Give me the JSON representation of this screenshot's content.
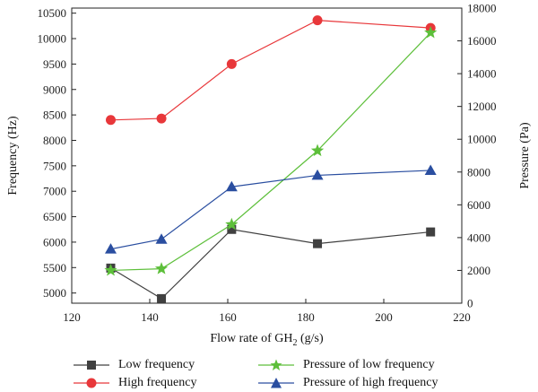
{
  "chart_data": {
    "type": "line",
    "xlabel_main": "Flow rate of GH",
    "xlabel_sub": "2",
    "xlabel_tail": " (g/s)",
    "ylabel_left": "Frequency (Hz)",
    "ylabel_right": "Pressure (Pa)",
    "xlim": [
      120,
      220
    ],
    "ylim_left": [
      4800,
      10600
    ],
    "ylim_right": [
      0,
      18000
    ],
    "x_ticks": [
      "120",
      "140",
      "160",
      "180",
      "200",
      "220"
    ],
    "y_left_ticks": [
      "5000",
      "5500",
      "6000",
      "6500",
      "7000",
      "7500",
      "8000",
      "8500",
      "9000",
      "9500",
      "10000",
      "10500"
    ],
    "y_right_ticks": [
      "0",
      "2000",
      "4000",
      "6000",
      "8000",
      "10000",
      "12000",
      "14000",
      "16000",
      "18000"
    ],
    "x": [
      130,
      143,
      161,
      183,
      212
    ],
    "series": [
      {
        "name": "Low frequency",
        "axis": "left",
        "color": "#404040",
        "marker": "square",
        "values": [
          5490,
          4890,
          6250,
          5970,
          6200
        ]
      },
      {
        "name": "High frequency",
        "axis": "left",
        "color": "#e8373a",
        "marker": "circle",
        "values": [
          8400,
          8430,
          9500,
          10360,
          10210
        ]
      },
      {
        "name": "Pressure of low frequency",
        "axis": "right",
        "color": "#5dbf3a",
        "marker": "star",
        "values": [
          2000,
          2100,
          4800,
          9300,
          16500
        ]
      },
      {
        "name": "Pressure of high frequency",
        "axis": "right",
        "color": "#2a4ea0",
        "marker": "triangle",
        "values": [
          3300,
          3900,
          7100,
          7800,
          8100
        ]
      }
    ],
    "legend_placement": "bottom"
  }
}
